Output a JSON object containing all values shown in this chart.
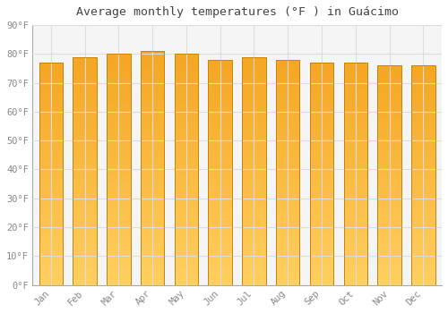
{
  "title": "Average monthly temperatures (°F ) in Guácimo",
  "months": [
    "Jan",
    "Feb",
    "Mar",
    "Apr",
    "May",
    "Jun",
    "Jul",
    "Aug",
    "Sep",
    "Oct",
    "Nov",
    "Dec"
  ],
  "values": [
    77,
    79,
    80,
    81,
    80,
    78,
    79,
    78,
    77,
    77,
    76,
    76
  ],
  "ylim": [
    0,
    90
  ],
  "yticks": [
    0,
    10,
    20,
    30,
    40,
    50,
    60,
    70,
    80,
    90
  ],
  "bar_color_top": "#F5A623",
  "bar_color_bottom": "#FFD060",
  "bar_edge_color": "#C8830A",
  "background_color": "#FFFFFF",
  "plot_bg_color": "#F5F5F5",
  "grid_color": "#DDDDDD",
  "tick_label_color": "#888888",
  "title_color": "#444444",
  "font_family": "monospace",
  "bar_width": 0.7
}
